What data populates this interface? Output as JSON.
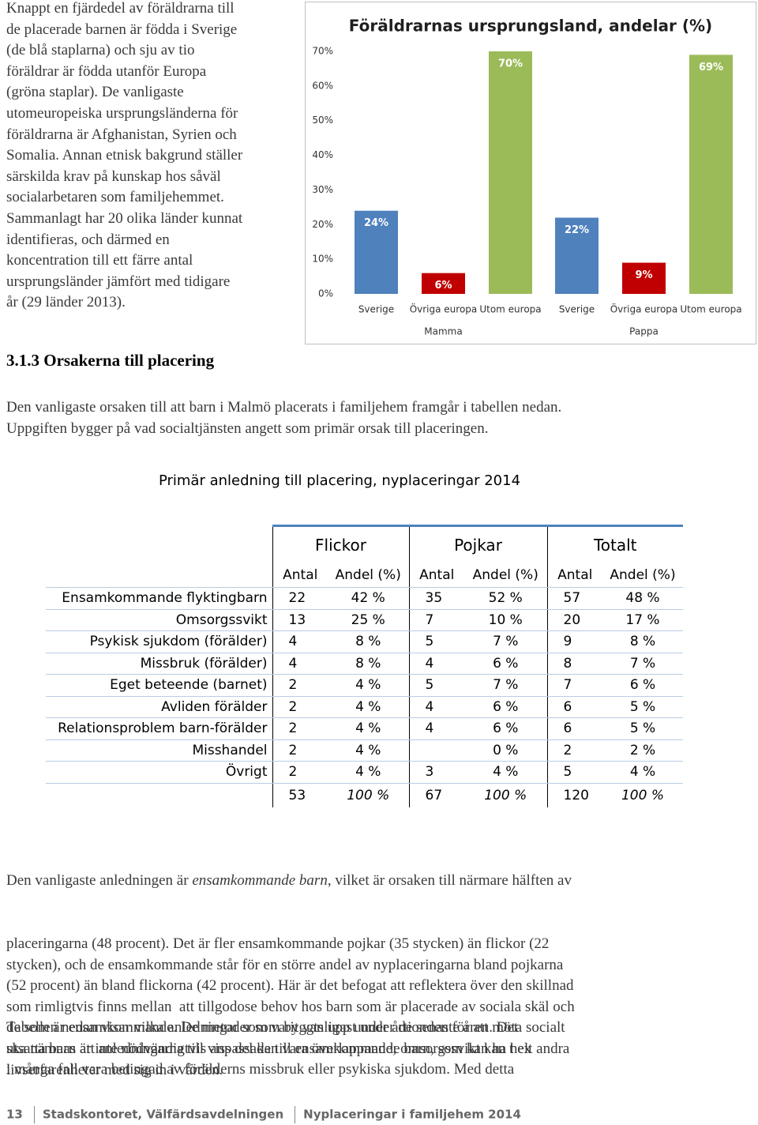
{
  "intro_lines": [
    "Knappt en fjärdedel av föräldrarna till",
    "de placerade barnen är födda i Sverige",
    "(de blå staplarna) och sju av tio",
    "föräldrar är födda utanför Europa",
    "(gröna staplar). De vanligaste",
    "utomeuropeiska ursprungsländerna för",
    "föräldrarna är Afghanistan, Syrien och",
    "Somalia. Annan etnisk bakgrund ställer",
    "särskilda krav på kunskap hos såväl",
    "socialarbetaren som familjehemmet.",
    "Sammanlagt har 20 olika länder kunnat",
    "identifieras, och därmed en",
    "koncentration till ett färre antal",
    "ursprungsländer jämfört med tidigare",
    "år (29 länder 2013)."
  ],
  "chart_data": {
    "type": "bar",
    "title": "Föräldrarnas ursprungsland, andelar (%)",
    "categories": [
      "Mamma",
      "Pappa"
    ],
    "series": [
      {
        "name": "Sverige",
        "color": "#4f81bd",
        "values": [
          24,
          22
        ],
        "value_labels": [
          "24%",
          "22%"
        ]
      },
      {
        "name": "Övriga europa",
        "color": "#c00000",
        "values": [
          6,
          9
        ],
        "value_labels": [
          "6%",
          "9%"
        ]
      },
      {
        "name": "Utom europa",
        "color": "#9bbb59",
        "values": [
          70,
          69
        ],
        "value_labels": [
          "70%",
          "69%"
        ]
      }
    ],
    "ylim": [
      0,
      70
    ],
    "yticks": [
      {
        "value": 0,
        "label": "0%"
      },
      {
        "value": 10,
        "label": "10%"
      },
      {
        "value": 20,
        "label": "20%"
      },
      {
        "value": 30,
        "label": "30%"
      },
      {
        "value": 40,
        "label": "40%"
      },
      {
        "value": 50,
        "label": "50%"
      },
      {
        "value": 60,
        "label": "60%"
      },
      {
        "value": 70,
        "label": "70%"
      }
    ],
    "grid": false
  },
  "section_heading": "3.1.3 Orsakerna till placering",
  "paragraph1_lines": [
    "Den vanligaste orsaken till att barn i Malmö placerats i familjehem framgår i tabellen nedan.",
    "Uppgiften bygger på vad socialtjänsten angett som primär orsak till placeringen."
  ],
  "table": {
    "title": "Primär anledning till placering, nyplaceringar 2014",
    "group_headers": [
      "Flickor",
      "Pojkar",
      "Totalt"
    ],
    "sub_headers": [
      "Antal",
      "Andel (%)",
      "Antal",
      "Andel (%)",
      "Antal",
      "Andel (%)"
    ],
    "rows": [
      [
        "Ensamkommande flyktingbarn",
        22,
        "42 %",
        35,
        "52 %",
        57,
        "48 %"
      ],
      [
        "Omsorgssvikt",
        13,
        "25 %",
        7,
        "10 %",
        20,
        "17 %"
      ],
      [
        "Psykisk sjukdom (förälder)",
        4,
        "8 %",
        5,
        "7 %",
        9,
        "8 %"
      ],
      [
        "Missbruk (förälder)",
        4,
        "8 %",
        4,
        "6 %",
        8,
        "7 %"
      ],
      [
        "Eget beteende (barnet)",
        2,
        "4 %",
        5,
        "7 %",
        7,
        "6 %"
      ],
      [
        "Avliden förälder",
        2,
        "4 %",
        4,
        "6 %",
        6,
        "5 %"
      ],
      [
        "Relationsproblem barn-förälder",
        2,
        "4 %",
        4,
        "6 %",
        6,
        "5 %"
      ],
      [
        "Misshandel",
        2,
        "4 %",
        null,
        "0 %",
        2,
        "2 %"
      ],
      [
        "Övrigt",
        2,
        "4 %",
        3,
        "4 %",
        5,
        "4 %"
      ]
    ],
    "total": [
      53,
      "100 %",
      67,
      "100 %",
      120,
      "100 %"
    ]
  },
  "conclusion": {
    "first_line": [
      "Den vanligaste anledningen är ",
      "ensamkommande barn",
      ", vilket är orsaken till närmare hälften av"
    ],
    "lines": [
      "placeringarna (48 procent). Det är fler ensamkommande pojkar (35 stycken) än flickor (22",
      "stycken), och de ensamkommande står för en större andel av nyplaceringarna bland pojkarna",
      "(52 procent) än bland flickorna (42 procent). Här är det befogat att reflektera över den skillnad",
      "som rimligtvis finns mellan  att tillgodose behov hos barn som är placerade av sociala skäl och",
      "de som är ensamkommande. De metoder som byggts upp under årtionden för att möta socialt",
      "utsatta barn är inte nödvändigtvis anpassade till ensamkommande barn, som kan ha helt andra",
      "livserfarenheter med sig in i vården."
    ]
  },
  "paragraph3_lines": [
    "Tabellen nedan visar vilka anledningar som varit vanligast under de senaste åren. Det",
    "ska nämnas att anledningarna till viss del kan vara överlappande; omsorgssvikt kan t ex",
    "i många fall vara betingad av förälderns missbruk eller psykiska sjukdom. Med detta"
  ],
  "footer": {
    "page": "13",
    "organisation": "Stadskontoret, Välfärdsavdelningen",
    "document": "Nyplaceringar i familjehem 2014"
  }
}
